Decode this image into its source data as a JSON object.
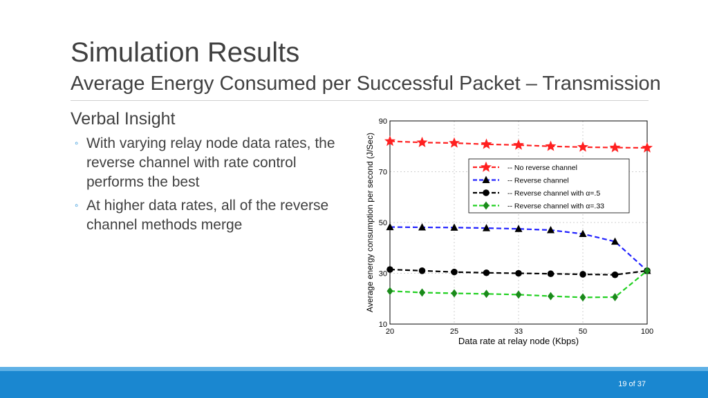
{
  "slide": {
    "title": "Simulation Results",
    "subtitle": "Average Energy Consumed per Successful Packet – Transmission",
    "heading": "Verbal Insight",
    "bullets": [
      "With varying relay node data rates, the reverse channel with rate control performs the best",
      "At higher data rates, all of the reverse channel methods merge"
    ],
    "page_number": "19 of 37"
  },
  "chart_data": {
    "type": "line",
    "xlabel": "Data rate at relay node (Kbps)",
    "ylabel": "Average energy consumption per second (J/Sec)",
    "x_tick_labels": [
      "20",
      "25",
      "33",
      "50",
      "100"
    ],
    "y_ticks": [
      10,
      30,
      50,
      70,
      90
    ],
    "ylim": [
      10,
      90
    ],
    "grid": true,
    "legend_position": "right",
    "series": [
      {
        "name": "-- No reverse channel",
        "color": "#ff2020",
        "marker": "star",
        "values": [
          82,
          81.5,
          81.3,
          80.8,
          80.5,
          80,
          79.7,
          79.5,
          79.4
        ]
      },
      {
        "name": "-- Reverse channel",
        "color": "#2020ff",
        "marker": "triangle",
        "values": [
          48.2,
          48.1,
          48,
          47.8,
          47.5,
          47,
          45.5,
          42.5,
          31
        ]
      },
      {
        "name": "-- Reverse channel with α=.5",
        "color": "#000000",
        "marker": "circle",
        "values": [
          31.5,
          31,
          30.5,
          30.2,
          30,
          29.8,
          29.6,
          29.4,
          31
        ]
      },
      {
        "name": "-- Reverse channel with α=.33",
        "color": "#20d020",
        "marker": "diamond",
        "values": [
          23,
          22.4,
          22.1,
          21.9,
          21.6,
          21,
          20.5,
          20.6,
          31
        ]
      }
    ]
  }
}
